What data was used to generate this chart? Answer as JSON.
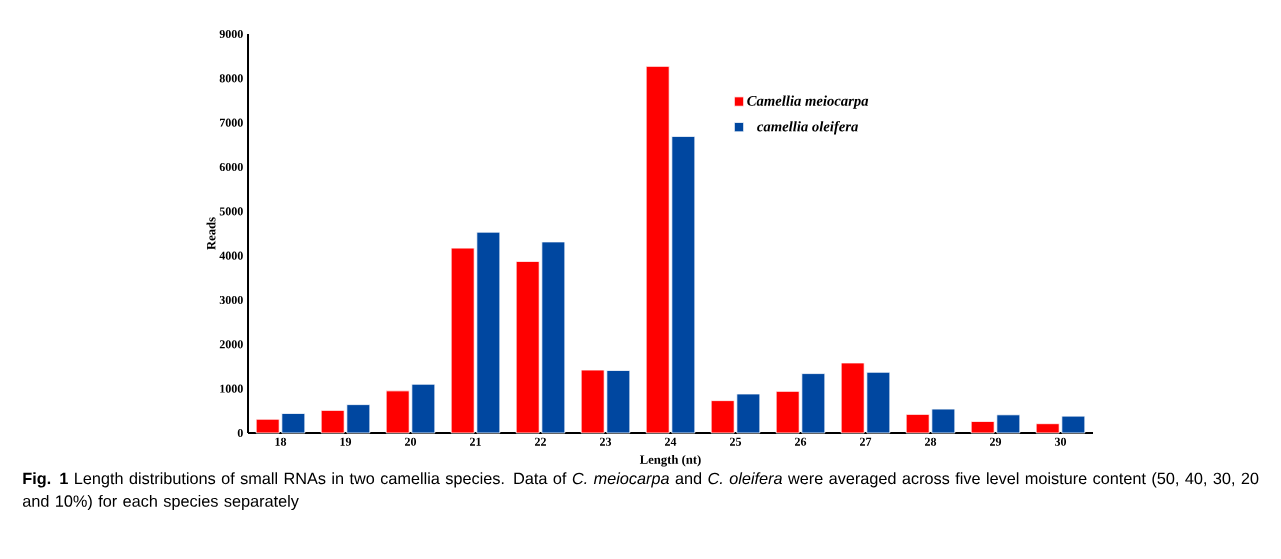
{
  "chart_data": {
    "type": "bar",
    "xlabel": "Length (nt)",
    "ylabel": "Reads",
    "categories": [
      "18",
      "19",
      "20",
      "21",
      "22",
      "23",
      "24",
      "25",
      "26",
      "27",
      "28",
      "29",
      "30"
    ],
    "series": [
      {
        "name": "Camellia meiocarpa",
        "color": "#ff0000",
        "values": [
          310,
          510,
          950,
          4170,
          3870,
          1420,
          8270,
          730,
          940,
          1580,
          420,
          260,
          210
        ]
      },
      {
        "name": "camellia oleifera",
        "color": "#0047a0",
        "values": [
          440,
          640,
          1100,
          4530,
          4310,
          1410,
          6690,
          880,
          1340,
          1370,
          540,
          410,
          380
        ]
      }
    ],
    "ylim": [
      0,
      9000
    ],
    "yticks": [
      0,
      1000,
      2000,
      3000,
      4000,
      5000,
      6000,
      7000,
      8000,
      9000
    ],
    "legend": "top right",
    "annotations": [
      "**Fig. 1** Length distributions of small RNAs in two camellia species. Data of *C. meiocarpa* and *C. oleifera* were averaged across five level moisture content (50, 40, 30, 20 and 10%) for each species separately"
    ]
  }
}
